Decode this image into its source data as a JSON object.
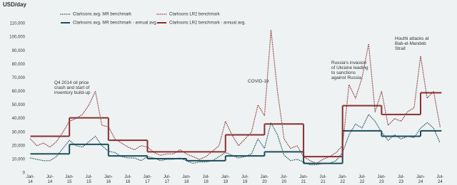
{
  "chart_data": {
    "type": "line",
    "y_label": "USD/day",
    "ylim": [
      0,
      110000
    ],
    "yticks": [
      0,
      {
        "value": 10000,
        "label": "10,000"
      },
      {
        "value": 20000,
        "label": "20,000"
      },
      {
        "value": 30000,
        "label": "30,000"
      },
      {
        "value": 40000,
        "label": "40,000"
      },
      {
        "value": 50000,
        "label": "50,000"
      },
      {
        "value": 60000,
        "label": "60,000"
      },
      {
        "value": 70000,
        "label": "70,000"
      },
      {
        "value": 80000,
        "label": "80,000"
      },
      {
        "value": 90000,
        "label": "90,000"
      },
      {
        "value": 100000,
        "label": "100,000"
      },
      {
        "value": 110000,
        "label": "110,000"
      }
    ],
    "xlim": [
      "2013-12",
      "2024-10"
    ],
    "xticks": [
      {
        "value": "2014-01",
        "label": "Jan-14"
      },
      {
        "value": "2014-07",
        "label": "Jul-14"
      },
      {
        "value": "2015-01",
        "label": "Jan-15"
      },
      {
        "value": "2015-07",
        "label": "Jul-15"
      },
      {
        "value": "2016-01",
        "label": "Jan-16"
      },
      {
        "value": "2016-07",
        "label": "Jul-16"
      },
      {
        "value": "2017-01",
        "label": "Jan-17"
      },
      {
        "value": "2017-07",
        "label": "Jul-17"
      },
      {
        "value": "2018-01",
        "label": "Jan-18"
      },
      {
        "value": "2018-07",
        "label": "Jul-18"
      },
      {
        "value": "2019-01",
        "label": "Jan-19"
      },
      {
        "value": "2019-07",
        "label": "Jul-19"
      },
      {
        "value": "2020-01",
        "label": "Jan-20"
      },
      {
        "value": "2020-07",
        "label": "Jul-20"
      },
      {
        "value": "2021-01",
        "label": "Jan-21"
      },
      {
        "value": "2021-07",
        "label": "Jul-21"
      },
      {
        "value": "2022-01",
        "label": "Jan-22"
      },
      {
        "value": "2022-07",
        "label": "Jul-22"
      },
      {
        "value": "2023-01",
        "label": "Jan-23"
      },
      {
        "value": "2023-07",
        "label": "Jul-23"
      },
      {
        "value": "2024-01",
        "label": "Jan-24"
      },
      {
        "value": "2024-07",
        "label": "Jul-24"
      }
    ],
    "series": [
      {
        "name": "Clarksons avg. MR benchmark",
        "color": "#1d4e5a",
        "style": "dotted",
        "x": [
          "2014-01",
          "2014-03",
          "2014-05",
          "2014-07",
          "2014-09",
          "2014-11",
          "2015-01",
          "2015-03",
          "2015-05",
          "2015-07",
          "2015-09",
          "2015-11",
          "2016-01",
          "2016-03",
          "2016-05",
          "2016-07",
          "2016-09",
          "2016-11",
          "2017-01",
          "2017-03",
          "2017-05",
          "2017-07",
          "2017-09",
          "2017-11",
          "2018-01",
          "2018-03",
          "2018-05",
          "2018-07",
          "2018-09",
          "2018-11",
          "2019-01",
          "2019-03",
          "2019-05",
          "2019-07",
          "2019-09",
          "2019-11",
          "2020-01",
          "2020-03",
          "2020-05",
          "2020-07",
          "2020-09",
          "2020-11",
          "2021-01",
          "2021-03",
          "2021-05",
          "2021-07",
          "2021-09",
          "2021-11",
          "2022-01",
          "2022-03",
          "2022-05",
          "2022-07",
          "2022-09",
          "2022-11",
          "2023-01",
          "2023-03",
          "2023-05",
          "2023-07",
          "2023-09",
          "2023-11",
          "2024-01",
          "2024-03",
          "2024-05",
          "2024-07"
        ],
        "values": [
          11000,
          10000,
          9000,
          9000,
          12000,
          18000,
          24000,
          20000,
          19000,
          23000,
          27000,
          20000,
          16000,
          15000,
          12000,
          11000,
          11000,
          9000,
          12000,
          11000,
          9000,
          10000,
          10000,
          11000,
          9000,
          7000,
          8000,
          8000,
          9000,
          12000,
          15000,
          13000,
          11000,
          12000,
          14000,
          25000,
          18000,
          37000,
          28000,
          13000,
          9000,
          10000,
          8000,
          6000,
          6000,
          7000,
          7000,
          9000,
          15000,
          28000,
          36000,
          33000,
          43000,
          38000,
          30000,
          24000,
          28000,
          25000,
          27000,
          26000,
          33000,
          37000,
          33000,
          22000
        ]
      },
      {
        "name": "Clarksons LR2 benchmark",
        "color": "#8b2f2f",
        "style": "dotted",
        "x": [
          "2014-01",
          "2014-03",
          "2014-05",
          "2014-07",
          "2014-09",
          "2014-11",
          "2015-01",
          "2015-03",
          "2015-05",
          "2015-07",
          "2015-09",
          "2015-11",
          "2016-01",
          "2016-03",
          "2016-05",
          "2016-07",
          "2016-09",
          "2016-11",
          "2017-01",
          "2017-03",
          "2017-05",
          "2017-07",
          "2017-09",
          "2017-11",
          "2018-01",
          "2018-03",
          "2018-05",
          "2018-07",
          "2018-09",
          "2018-11",
          "2019-01",
          "2019-03",
          "2019-05",
          "2019-07",
          "2019-09",
          "2019-11",
          "2020-01",
          "2020-03",
          "2020-05",
          "2020-07",
          "2020-09",
          "2020-11",
          "2021-01",
          "2021-03",
          "2021-05",
          "2021-07",
          "2021-09",
          "2021-11",
          "2022-01",
          "2022-03",
          "2022-05",
          "2022-07",
          "2022-09",
          "2022-11",
          "2023-01",
          "2023-03",
          "2023-05",
          "2023-07",
          "2023-09",
          "2023-11",
          "2024-01",
          "2024-03",
          "2024-05",
          "2024-07"
        ],
        "values": [
          25000,
          20000,
          22000,
          19000,
          23000,
          30000,
          38000,
          40000,
          43000,
          50000,
          60000,
          35000,
          34000,
          25000,
          22000,
          19000,
          17000,
          20000,
          19000,
          15000,
          13000,
          14000,
          14000,
          17000,
          14000,
          12000,
          10000,
          12000,
          16000,
          20000,
          38000,
          28000,
          20000,
          25000,
          30000,
          50000,
          42000,
          105000,
          60000,
          25000,
          18000,
          20000,
          12000,
          9000,
          7000,
          10000,
          12000,
          15000,
          20000,
          65000,
          55000,
          70000,
          95000,
          45000,
          60000,
          35000,
          40000,
          38000,
          45000,
          48000,
          86000,
          55000,
          60000,
          34000
        ]
      },
      {
        "name": "Clarksons avg. MR benchmark - annual avg.",
        "color": "#1d4e5a",
        "style": "step",
        "x": [
          "2014",
          "2015",
          "2016",
          "2017",
          "2018",
          "2019",
          "2020",
          "2021",
          "2022",
          "2023",
          "2024"
        ],
        "values": [
          14000,
          21000,
          12500,
          10500,
          9000,
          12500,
          15500,
          7000,
          31000,
          27000,
          31000
        ]
      },
      {
        "name": "Clarksons LR2 benchmark - annual avg.",
        "color": "#8b2f2f",
        "style": "step",
        "x": [
          "2014",
          "2015",
          "2016",
          "2017",
          "2018",
          "2019",
          "2020",
          "2021",
          "2022",
          "2023",
          "2024"
        ],
        "values": [
          27000,
          40500,
          24000,
          15500,
          15500,
          28000,
          36000,
          12000,
          49500,
          43000,
          59000
        ]
      }
    ],
    "annotations": [
      "Q4 2014 oil price crash and start of inventory build-up",
      "COVID-19",
      "Russia's invasion of Ukraine leading to sanctions against Russia",
      "Houthi attacks at Bab-el-Mandeb Strait"
    ]
  }
}
